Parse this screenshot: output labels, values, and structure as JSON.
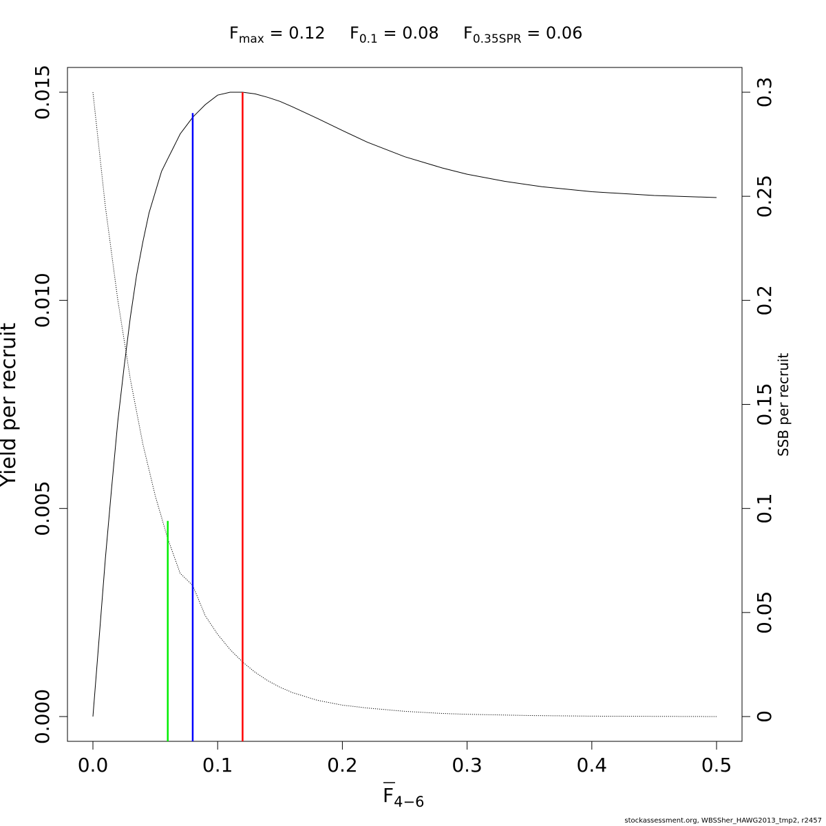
{
  "chart_data": {
    "type": "line",
    "title": {
      "fmax": {
        "symbol": "F",
        "sub": "max",
        "value": "0.12"
      },
      "f01": {
        "symbol": "F",
        "sub": "0.1",
        "value": "0.08"
      },
      "fspr": {
        "symbol": "F",
        "sub": "0.35SPR",
        "value": "0.06"
      }
    },
    "xlabel": {
      "symbol": "F",
      "sub": "4−6"
    },
    "ylabel": "Yield per recruit",
    "y2label": "SSB per recruit",
    "xlim": [
      0,
      0.5
    ],
    "ylim": [
      0,
      0.015
    ],
    "y2lim": [
      0,
      0.3
    ],
    "x_ticks": [
      0.0,
      0.1,
      0.2,
      0.3,
      0.4,
      0.5
    ],
    "x_tick_labels": [
      "0.0",
      "0.1",
      "0.2",
      "0.3",
      "0.4",
      "0.5"
    ],
    "y_ticks": [
      0.0,
      0.005,
      0.01,
      0.015
    ],
    "y_tick_labels": [
      "0.000",
      "0.005",
      "0.010",
      "0.015"
    ],
    "y2_ticks": [
      0,
      0.05,
      0.1,
      0.15,
      0.2,
      0.25,
      0.3
    ],
    "y2_tick_labels": [
      "0",
      "0.05",
      "0.1",
      "0.15",
      "0.2",
      "0.25",
      "0.3"
    ],
    "series": [
      {
        "axis": "left",
        "style": "solid",
        "color": "#000000",
        "x": [
          0,
          0.005,
          0.01,
          0.015,
          0.02,
          0.025,
          0.03,
          0.035,
          0.04,
          0.045,
          0.05,
          0.055,
          0.06,
          0.065,
          0.07,
          0.075,
          0.08,
          0.09,
          0.1,
          0.11,
          0.12,
          0.13,
          0.14,
          0.15,
          0.16,
          0.18,
          0.2,
          0.22,
          0.25,
          0.28,
          0.3,
          0.33,
          0.36,
          0.4,
          0.45,
          0.5
        ],
        "y": [
          0.0,
          0.0019,
          0.0038,
          0.0055,
          0.0071,
          0.0084,
          0.0096,
          0.0106,
          0.0114,
          0.0121,
          0.0126,
          0.0131,
          0.0134,
          0.0137,
          0.014,
          0.0142,
          0.0144,
          0.0147,
          0.01493,
          0.015,
          0.015,
          0.01496,
          0.01488,
          0.01478,
          0.01465,
          0.01437,
          0.01408,
          0.0138,
          0.01345,
          0.01318,
          0.01303,
          0.01286,
          0.01273,
          0.01261,
          0.01252,
          0.01247
        ]
      },
      {
        "axis": "right",
        "style": "dotted",
        "color": "#000000",
        "x": [
          0,
          0.01,
          0.02,
          0.03,
          0.04,
          0.05,
          0.06,
          0.07,
          0.08,
          0.09,
          0.1,
          0.11,
          0.12,
          0.13,
          0.14,
          0.15,
          0.16,
          0.18,
          0.2,
          0.22,
          0.25,
          0.28,
          0.3,
          0.35,
          0.4,
          0.45,
          0.5
        ],
        "y": [
          0.3,
          0.245,
          0.2,
          0.162,
          0.131,
          0.106,
          0.0855,
          0.0688,
          0.063,
          0.0485,
          0.0395,
          0.0322,
          0.0262,
          0.0213,
          0.0173,
          0.0141,
          0.0115,
          0.0078,
          0.0055,
          0.0041,
          0.0025,
          0.0015,
          0.0011,
          0.0005,
          0.0002,
          0.0001,
          0.0
        ]
      }
    ],
    "reference_lines": [
      {
        "x": 0.06,
        "y": 0.0047,
        "color": "#00ee00"
      },
      {
        "x": 0.08,
        "y": 0.0145,
        "color": "#0000ff"
      },
      {
        "x": 0.12,
        "y": 0.015,
        "color": "#ff0000"
      }
    ]
  },
  "footer": "stockassessment.org, WBSSher_HAWG2013_tmp2, r2457"
}
